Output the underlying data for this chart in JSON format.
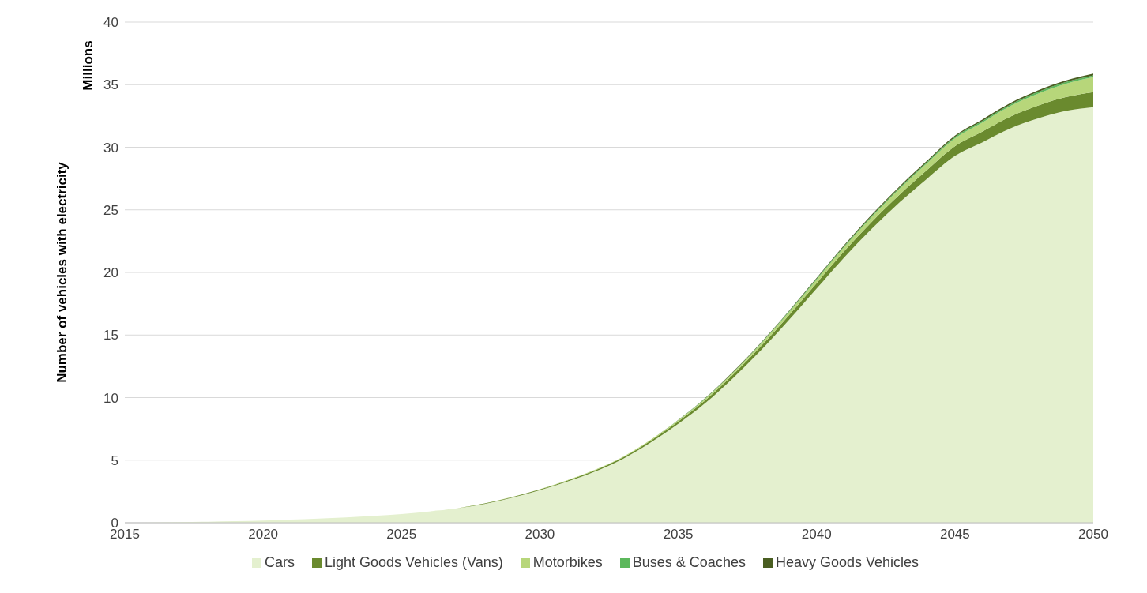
{
  "chart_data": {
    "type": "area",
    "stacked": true,
    "ylabel": "Number of vehicles  with electricity",
    "annotations": [
      "Millions"
    ],
    "x": [
      2015,
      2016,
      2017,
      2018,
      2019,
      2020,
      2021,
      2022,
      2023,
      2024,
      2025,
      2026,
      2027,
      2028,
      2029,
      2030,
      2031,
      2032,
      2033,
      2034,
      2035,
      2036,
      2037,
      2038,
      2039,
      2040,
      2041,
      2042,
      2043,
      2044,
      2045,
      2046,
      2047,
      2048,
      2049,
      2050
    ],
    "series": [
      {
        "name": "Cars",
        "color": "#e4f0cf",
        "values": [
          0,
          0.02,
          0.05,
          0.08,
          0.12,
          0.17,
          0.25,
          0.33,
          0.42,
          0.55,
          0.7,
          0.9,
          1.15,
          1.5,
          2.0,
          2.6,
          3.3,
          4.1,
          5.1,
          6.4,
          7.9,
          9.6,
          11.6,
          13.8,
          16.2,
          18.7,
          21.2,
          23.5,
          25.6,
          27.5,
          29.3,
          30.4,
          31.5,
          32.3,
          32.9,
          33.2
        ]
      },
      {
        "name": "Light Goods Vehicles (Vans)",
        "color": "#6a8a2e",
        "values": [
          0,
          0,
          0,
          0,
          0,
          0,
          0,
          0,
          0,
          0,
          0,
          0,
          0,
          0.04,
          0.05,
          0.06,
          0.08,
          0.1,
          0.12,
          0.15,
          0.19,
          0.23,
          0.28,
          0.33,
          0.38,
          0.44,
          0.5,
          0.56,
          0.62,
          0.7,
          0.78,
          0.86,
          0.95,
          1.03,
          1.1,
          1.2
        ]
      },
      {
        "name": "Motorbikes",
        "color": "#b7d67a",
        "values": [
          0,
          0,
          0,
          0,
          0,
          0,
          0,
          0,
          0,
          0,
          0,
          0,
          0,
          0.01,
          0.01,
          0.02,
          0.03,
          0.04,
          0.05,
          0.07,
          0.09,
          0.12,
          0.15,
          0.19,
          0.23,
          0.28,
          0.33,
          0.39,
          0.46,
          0.54,
          0.63,
          0.73,
          0.84,
          0.95,
          1.07,
          1.2
        ]
      },
      {
        "name": "Buses & Coaches",
        "color": "#5cb85c",
        "values": [
          0,
          0,
          0,
          0,
          0,
          0,
          0,
          0,
          0,
          0,
          0,
          0,
          0,
          0,
          0,
          0,
          0,
          0,
          0,
          0,
          0.02,
          0.03,
          0.04,
          0.05,
          0.06,
          0.07,
          0.08,
          0.09,
          0.1,
          0.1,
          0.11,
          0.12,
          0.12,
          0.13,
          0.13,
          0.14
        ]
      },
      {
        "name": "Heavy Goods Vehicles",
        "color": "#4a5e22",
        "values": [
          0,
          0,
          0,
          0,
          0,
          0,
          0,
          0,
          0,
          0,
          0,
          0,
          0,
          0,
          0,
          0,
          0,
          0,
          0,
          0,
          0.02,
          0.03,
          0.04,
          0.05,
          0.06,
          0.07,
          0.08,
          0.09,
          0.1,
          0.1,
          0.11,
          0.12,
          0.12,
          0.13,
          0.13,
          0.14
        ]
      }
    ],
    "xlim": [
      2015,
      2050
    ],
    "xticks": [
      2015,
      2020,
      2025,
      2030,
      2035,
      2040,
      2045,
      2050
    ],
    "ylim": [
      0,
      40
    ],
    "yticks": [
      0,
      5,
      10,
      15,
      20,
      25,
      30,
      35,
      40
    ],
    "grid": "y",
    "legend": "bottom"
  }
}
